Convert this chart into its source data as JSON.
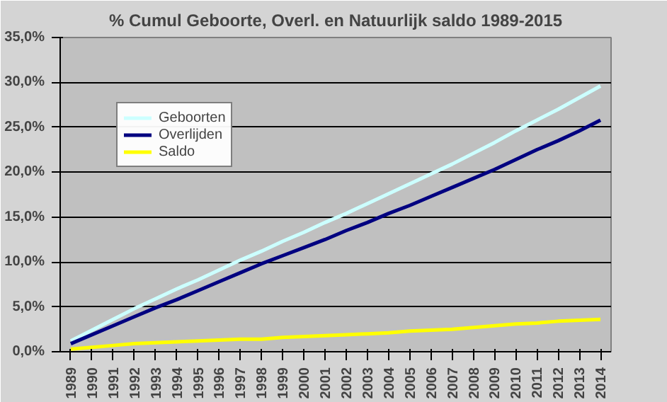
{
  "chart_data": {
    "type": "line",
    "title": "% Cumul Geboorte, Overl. en Natuurlijk saldo 1989-2015",
    "categories": [
      "1989",
      "1990",
      "1991",
      "1992",
      "1993",
      "1994",
      "1995",
      "1996",
      "1997",
      "1998",
      "1999",
      "2000",
      "2001",
      "2002",
      "2003",
      "2004",
      "2005",
      "2006",
      "2007",
      "2008",
      "2009",
      "2010",
      "2011",
      "2012",
      "2013",
      "2014"
    ],
    "series": [
      {
        "name": "Geboorten",
        "color": "#ccffff",
        "values": [
          1.2,
          2.4,
          3.6,
          4.8,
          5.9,
          7.0,
          8.0,
          9.1,
          10.2,
          11.2,
          12.3,
          13.3,
          14.4,
          15.4,
          16.5,
          17.6,
          18.7,
          19.8,
          20.9,
          22.1,
          23.3,
          24.6,
          25.8,
          27.0,
          28.3,
          29.6
        ]
      },
      {
        "name": "Overlijden",
        "color": "#000080",
        "values": [
          0.9,
          1.9,
          2.9,
          3.9,
          4.9,
          5.8,
          6.8,
          7.8,
          8.8,
          9.8,
          10.7,
          11.6,
          12.5,
          13.5,
          14.4,
          15.4,
          16.3,
          17.3,
          18.3,
          19.3,
          20.3,
          21.4,
          22.5,
          23.5,
          24.6,
          25.8
        ]
      },
      {
        "name": "Saldo",
        "color": "#ffff00",
        "values": [
          0.3,
          0.5,
          0.7,
          0.9,
          1.0,
          1.1,
          1.2,
          1.3,
          1.4,
          1.4,
          1.6,
          1.7,
          1.8,
          1.9,
          2.0,
          2.1,
          2.3,
          2.4,
          2.5,
          2.7,
          2.9,
          3.1,
          3.2,
          3.4,
          3.5,
          3.6
        ]
      }
    ],
    "ylim": [
      0,
      35
    ],
    "yticks": [
      {
        "value": 0,
        "label": "0,0%"
      },
      {
        "value": 5,
        "label": "5,0%"
      },
      {
        "value": 10,
        "label": "10,0%"
      },
      {
        "value": 15,
        "label": "15,0%"
      },
      {
        "value": 20,
        "label": "20,0%"
      },
      {
        "value": 25,
        "label": "25,0%"
      },
      {
        "value": 30,
        "label": "30,0%"
      },
      {
        "value": 35,
        "label": "35,0%"
      }
    ],
    "grid": "y",
    "legend": "left",
    "marker": "none",
    "line_style": "solid"
  }
}
